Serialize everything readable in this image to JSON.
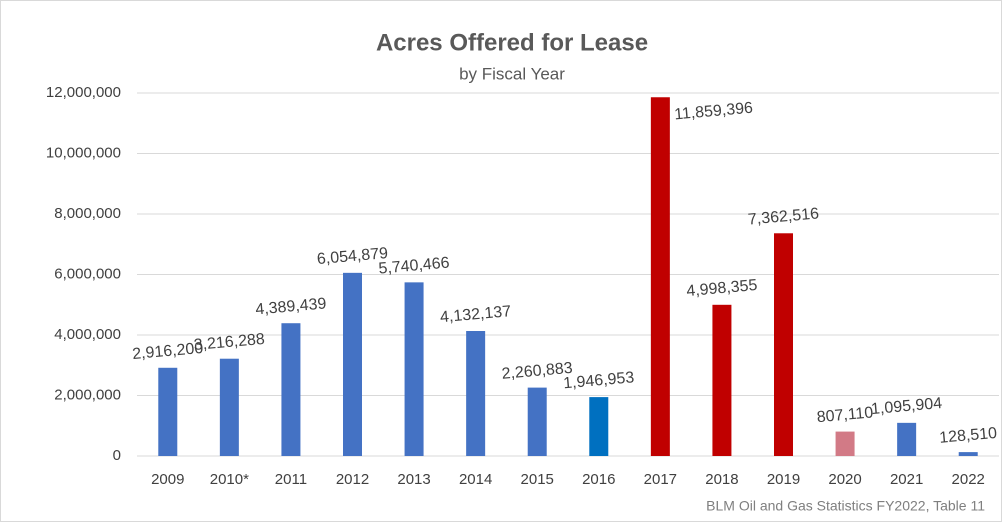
{
  "chart_data": {
    "type": "bar",
    "title": "Acres Offered for Lease",
    "subtitle": "by Fiscal Year",
    "source": "BLM Oil and Gas Statistics FY2022, Table 11",
    "categories": [
      "2009",
      "2010*",
      "2011",
      "2012",
      "2013",
      "2014",
      "2015",
      "2016",
      "2017",
      "2018",
      "2019",
      "2020",
      "2021",
      "2022"
    ],
    "values": [
      2916200,
      3216288,
      4389439,
      6054879,
      5740466,
      4132137,
      2260883,
      1946953,
      11859396,
      4998355,
      7362516,
      807110,
      1095904,
      128510
    ],
    "value_labels": [
      "2,916,200",
      "3,216,288",
      "4,389,439",
      "6,054,879",
      "5,740,466",
      "4,132,137",
      "2,260,883",
      "1,946,953",
      "11,859,396",
      "4,998,355",
      "7,362,516",
      "807,110",
      "1,095,904",
      "128,510"
    ],
    "colors": [
      "#4472c4",
      "#4472c4",
      "#4472c4",
      "#4472c4",
      "#4472c4",
      "#4472c4",
      "#4472c4",
      "#0070c0",
      "#c00000",
      "#c00000",
      "#c00000",
      "#d27a86",
      "#4472c4",
      "#4472c4"
    ],
    "ylim": [
      0,
      12000000
    ],
    "yticks": [
      0,
      {
        "value": 2000000,
        "label": "2,000,000"
      },
      {
        "value": 4000000,
        "label": "4,000,000"
      },
      {
        "value": 6000000,
        "label": "6,000,000"
      },
      {
        "value": 8000000,
        "label": "8,000,000"
      },
      {
        "value": 10000000,
        "label": "10,000,000"
      },
      {
        "value": 12000000,
        "label": "12,000,000"
      }
    ],
    "grid": true
  }
}
